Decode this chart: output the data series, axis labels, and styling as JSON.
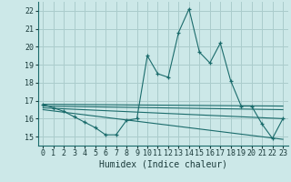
{
  "xlabel": "Humidex (Indice chaleur)",
  "bg_color": "#cce8e8",
  "grid_color": "#aacccc",
  "line_color": "#1a6b6b",
  "xlim": [
    -0.5,
    23.5
  ],
  "ylim": [
    14.5,
    22.5
  ],
  "xticks": [
    0,
    1,
    2,
    3,
    4,
    5,
    6,
    7,
    8,
    9,
    10,
    11,
    12,
    13,
    14,
    15,
    16,
    17,
    18,
    19,
    20,
    21,
    22,
    23
  ],
  "yticks": [
    15,
    16,
    17,
    18,
    19,
    20,
    21,
    22
  ],
  "line1_x": [
    0,
    1,
    2,
    3,
    4,
    5,
    6,
    7,
    8,
    9,
    10,
    11,
    12,
    13,
    14,
    15,
    16,
    17,
    18,
    19,
    20,
    21,
    22,
    23
  ],
  "line1_y": [
    16.8,
    16.6,
    16.4,
    16.1,
    15.8,
    15.5,
    15.1,
    15.1,
    15.9,
    16.0,
    19.5,
    18.5,
    18.3,
    20.8,
    22.1,
    19.7,
    19.1,
    20.2,
    18.1,
    16.7,
    16.7,
    15.7,
    14.9,
    16.0
  ],
  "line2_x": [
    0,
    23
  ],
  "line2_y": [
    16.8,
    16.7
  ],
  "line3_x": [
    0,
    23
  ],
  "line3_y": [
    16.7,
    16.5
  ],
  "line4_x": [
    0,
    23
  ],
  "line4_y": [
    16.6,
    16.0
  ],
  "line5_x": [
    0,
    23
  ],
  "line5_y": [
    16.5,
    14.85
  ],
  "xlabel_fontsize": 7,
  "tick_fontsize": 6
}
